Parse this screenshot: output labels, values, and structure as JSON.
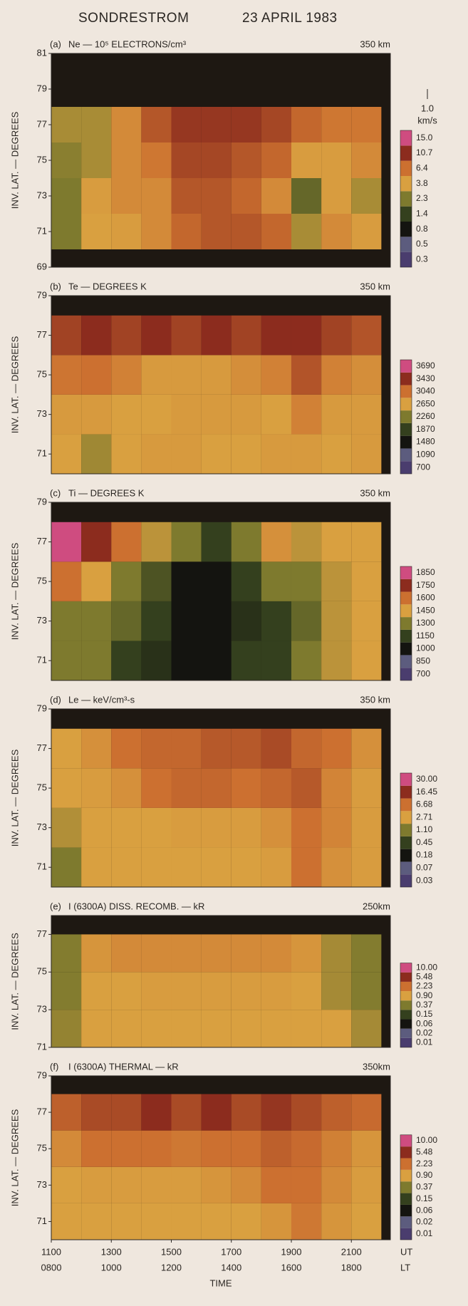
{
  "header": {
    "station": "SONDRESTROM",
    "date": "23 APRIL 1983"
  },
  "chart_data": [
    {
      "type": "heatmap",
      "panel_label": "(a)",
      "title": "Ne — 10⁵ ELECTRONS/cm³",
      "altitude": "350 km",
      "ylabel": "INV. LAT. — DEGREES",
      "annotations": [
        "1.0",
        "km/s"
      ],
      "xlim": [
        1100,
        2230
      ],
      "ylim": [
        69,
        81
      ],
      "yticks": [
        69,
        71,
        73,
        75,
        77,
        79,
        81
      ],
      "x": [
        1150,
        1250,
        1350,
        1450,
        1550,
        1650,
        1750,
        1850,
        1950,
        2050,
        2150
      ],
      "y": [
        71,
        73,
        75,
        77
      ],
      "z": [
        [
          2.3,
          3.8,
          4,
          5,
          7,
          8,
          8,
          7,
          3,
          5,
          4
        ],
        [
          2.3,
          4,
          5,
          5,
          8,
          8,
          7,
          5,
          2,
          4,
          3
        ],
        [
          2.5,
          3,
          5,
          6,
          9,
          9,
          8,
          7,
          4,
          4,
          5
        ],
        [
          3,
          3,
          5,
          8,
          10,
          10,
          10,
          9,
          7,
          6,
          6
        ]
      ],
      "colorbar_ticks": [
        0.3,
        0.5,
        0.8,
        1.4,
        2.3,
        3.8,
        6.4,
        10.7,
        {
          "value": 15,
          "label": "15.0"
        }
      ],
      "colorscale": [
        "#4a3d6e",
        "#5c5c7e",
        "#141410",
        "#34401e",
        "#7e7a2e",
        "#d9a040",
        "#cc7030",
        "#8c2c1e",
        "#cf4c80"
      ]
    },
    {
      "type": "heatmap",
      "panel_label": "(b)",
      "title": "Te — DEGREES K",
      "altitude": "350 km",
      "ylabel": "INV. LAT. — DEGREES",
      "xlim": [
        1100,
        2230
      ],
      "ylim": [
        70,
        79
      ],
      "yticks": [
        71,
        73,
        75,
        77,
        79
      ],
      "x": [
        1150,
        1250,
        1350,
        1450,
        1550,
        1650,
        1750,
        1850,
        1950,
        2050,
        2150
      ],
      "y": [
        71,
        73,
        75,
        77
      ],
      "z": [
        [
          2650,
          2400,
          2650,
          2700,
          2700,
          2650,
          2650,
          2700,
          2700,
          2650,
          2700
        ],
        [
          2700,
          2700,
          2650,
          2650,
          2700,
          2700,
          2700,
          2650,
          2900,
          2700,
          2700
        ],
        [
          3000,
          3040,
          2900,
          2700,
          2700,
          2700,
          2800,
          2900,
          3200,
          2900,
          2800
        ],
        [
          3300,
          3430,
          3300,
          3430,
          3300,
          3430,
          3300,
          3430,
          3430,
          3300,
          3200
        ]
      ],
      "colorbar_ticks": [
        700,
        1090,
        1480,
        1870,
        2260,
        2650,
        3040,
        3430,
        3690
      ],
      "colorscale": [
        "#4a3d6e",
        "#5c5c7e",
        "#141410",
        "#34401e",
        "#7e7a2e",
        "#d9a040",
        "#cc7030",
        "#8c2c1e",
        "#cf4c80"
      ]
    },
    {
      "type": "heatmap",
      "panel_label": "(c)",
      "title": "Ti — DEGREES K",
      "altitude": "350 km",
      "ylabel": "INV. LAT. — DEGREES",
      "xlim": [
        1100,
        2230
      ],
      "ylim": [
        70,
        79
      ],
      "yticks": [
        71,
        73,
        75,
        77,
        79
      ],
      "x": [
        1150,
        1250,
        1350,
        1450,
        1550,
        1650,
        1750,
        1850,
        1950,
        2050,
        2150
      ],
      "y": [
        71,
        73,
        75,
        77
      ],
      "z": [
        [
          1300,
          1300,
          1150,
          1100,
          1000,
          1000,
          1150,
          1150,
          1300,
          1400,
          1450
        ],
        [
          1300,
          1300,
          1250,
          1150,
          1000,
          1000,
          1100,
          1150,
          1250,
          1400,
          1450
        ],
        [
          1600,
          1450,
          1300,
          1200,
          1000,
          1000,
          1150,
          1300,
          1300,
          1400,
          1450
        ],
        [
          1850,
          1750,
          1600,
          1400,
          1300,
          1150,
          1300,
          1500,
          1400,
          1450,
          1450
        ]
      ],
      "colorbar_ticks": [
        700,
        850,
        1000,
        1150,
        1300,
        1450,
        1600,
        1750,
        1850
      ],
      "colorscale": [
        "#4a3d6e",
        "#5c5c7e",
        "#141410",
        "#34401e",
        "#7e7a2e",
        "#d9a040",
        "#cc7030",
        "#8c2c1e",
        "#cf4c80"
      ]
    },
    {
      "type": "heatmap",
      "panel_label": "(d)",
      "title": "Le — keV/cm³-s",
      "altitude": "350 km",
      "ylabel": "INV. LAT. — DEGREES",
      "xlim": [
        1100,
        2230
      ],
      "ylim": [
        70,
        79
      ],
      "yticks": [
        71,
        73,
        75,
        77,
        79
      ],
      "x": [
        1150,
        1250,
        1350,
        1450,
        1550,
        1650,
        1750,
        1850,
        1950,
        2050,
        2150
      ],
      "y": [
        71,
        73,
        75,
        77
      ],
      "z": [
        [
          1.1,
          2.71,
          2.71,
          2.71,
          2.71,
          2.71,
          2.71,
          3,
          6.68,
          4,
          3
        ],
        [
          2,
          2.71,
          2.71,
          2.71,
          3,
          3,
          3,
          4,
          6.68,
          5,
          3
        ],
        [
          2.71,
          3,
          4,
          6.68,
          8,
          8,
          6.68,
          8,
          10,
          5,
          3
        ],
        [
          2.71,
          4,
          6.68,
          8,
          8,
          10,
          10,
          12,
          8,
          6.68,
          4
        ]
      ],
      "colorbar_ticks": [
        0.03,
        0.07,
        0.18,
        0.45,
        {
          "value": 1.1,
          "label": "1.10"
        },
        2.71,
        6.68,
        16.45,
        {
          "value": 30,
          "label": "30.00"
        }
      ],
      "colorscale": [
        "#4a3d6e",
        "#5c5c7e",
        "#141410",
        "#34401e",
        "#7e7a2e",
        "#d9a040",
        "#cc7030",
        "#8c2c1e",
        "#cf4c80"
      ]
    },
    {
      "type": "heatmap",
      "panel_label": "(e)",
      "title": "I (6300A) DISS. RECOMB. — kR",
      "altitude": "250km",
      "ylabel": "INV. LAT. — DEGREES",
      "xlim": [
        1100,
        2230
      ],
      "ylim": [
        71,
        78
      ],
      "yticks": [
        71,
        73,
        75,
        77
      ],
      "x": [
        1150,
        1250,
        1350,
        1450,
        1550,
        1650,
        1750,
        1850,
        1950,
        2050,
        2150
      ],
      "y": [
        72,
        74,
        76
      ],
      "z": [
        [
          0.5,
          0.9,
          0.9,
          0.9,
          0.9,
          0.9,
          0.9,
          0.9,
          0.9,
          0.9,
          0.6
        ],
        [
          0.4,
          0.9,
          0.9,
          1,
          1,
          1,
          1,
          1,
          0.9,
          0.6,
          0.4
        ],
        [
          0.4,
          1.2,
          1.5,
          1.5,
          1.5,
          1.5,
          1.5,
          1.5,
          1.2,
          0.6,
          0.4
        ]
      ],
      "colorbar_ticks": [
        0.01,
        0.02,
        0.06,
        0.15,
        0.37,
        {
          "value": 0.9,
          "label": "0.90"
        },
        2.23,
        5.48,
        {
          "value": 10,
          "label": "10.00"
        }
      ],
      "colorscale": [
        "#4a3d6e",
        "#5c5c7e",
        "#141410",
        "#34401e",
        "#7e7a2e",
        "#d9a040",
        "#cc7030",
        "#8c2c1e",
        "#cf4c80"
      ]
    },
    {
      "type": "heatmap",
      "panel_label": "(f)",
      "title": "I (6300A) THERMAL — kR",
      "altitude": "350km",
      "ylabel": "INV. LAT. — DEGREES",
      "xlabel": "TIME",
      "x_axis_names": [
        "UT",
        "LT"
      ],
      "xlim": [
        1100,
        2230
      ],
      "ylim": [
        70,
        79
      ],
      "yticks": [
        71,
        73,
        75,
        77,
        79
      ],
      "xticks": [
        1100,
        1300,
        1500,
        1700,
        1900,
        2100
      ],
      "x2ticks": [
        {
          "value": 1100,
          "label": "0800"
        },
        {
          "value": 1300,
          "label": "1000"
        },
        {
          "value": 1500,
          "label": "1200"
        },
        {
          "value": 1700,
          "label": "1400"
        },
        {
          "value": 1900,
          "label": "1600"
        },
        {
          "value": 2100,
          "label": "1800"
        }
      ],
      "x": [
        1150,
        1250,
        1350,
        1450,
        1550,
        1650,
        1750,
        1850,
        1950,
        2050,
        2150
      ],
      "y": [
        71,
        73,
        75,
        77
      ],
      "z": [
        [
          0.9,
          0.9,
          0.9,
          0.9,
          0.9,
          0.9,
          0.9,
          1.2,
          2,
          1.2,
          0.9
        ],
        [
          0.9,
          1,
          1,
          1,
          1,
          1.2,
          1.5,
          2.23,
          2.23,
          1.5,
          1
        ],
        [
          1.5,
          2.23,
          2.23,
          2.23,
          2,
          2.23,
          2.23,
          3,
          2.5,
          1.8,
          1.2
        ],
        [
          3,
          4,
          4,
          5.48,
          4,
          5.48,
          4,
          5,
          4,
          3,
          2.5
        ]
      ],
      "colorbar_ticks": [
        0.01,
        0.02,
        0.06,
        0.15,
        0.37,
        {
          "value": 0.9,
          "label": "0.90"
        },
        2.23,
        5.48,
        {
          "value": 10,
          "label": "10.00"
        }
      ],
      "colorscale": [
        "#4a3d6e",
        "#5c5c7e",
        "#141410",
        "#34401e",
        "#7e7a2e",
        "#d9a040",
        "#cc7030",
        "#8c2c1e",
        "#cf4c80"
      ]
    }
  ]
}
